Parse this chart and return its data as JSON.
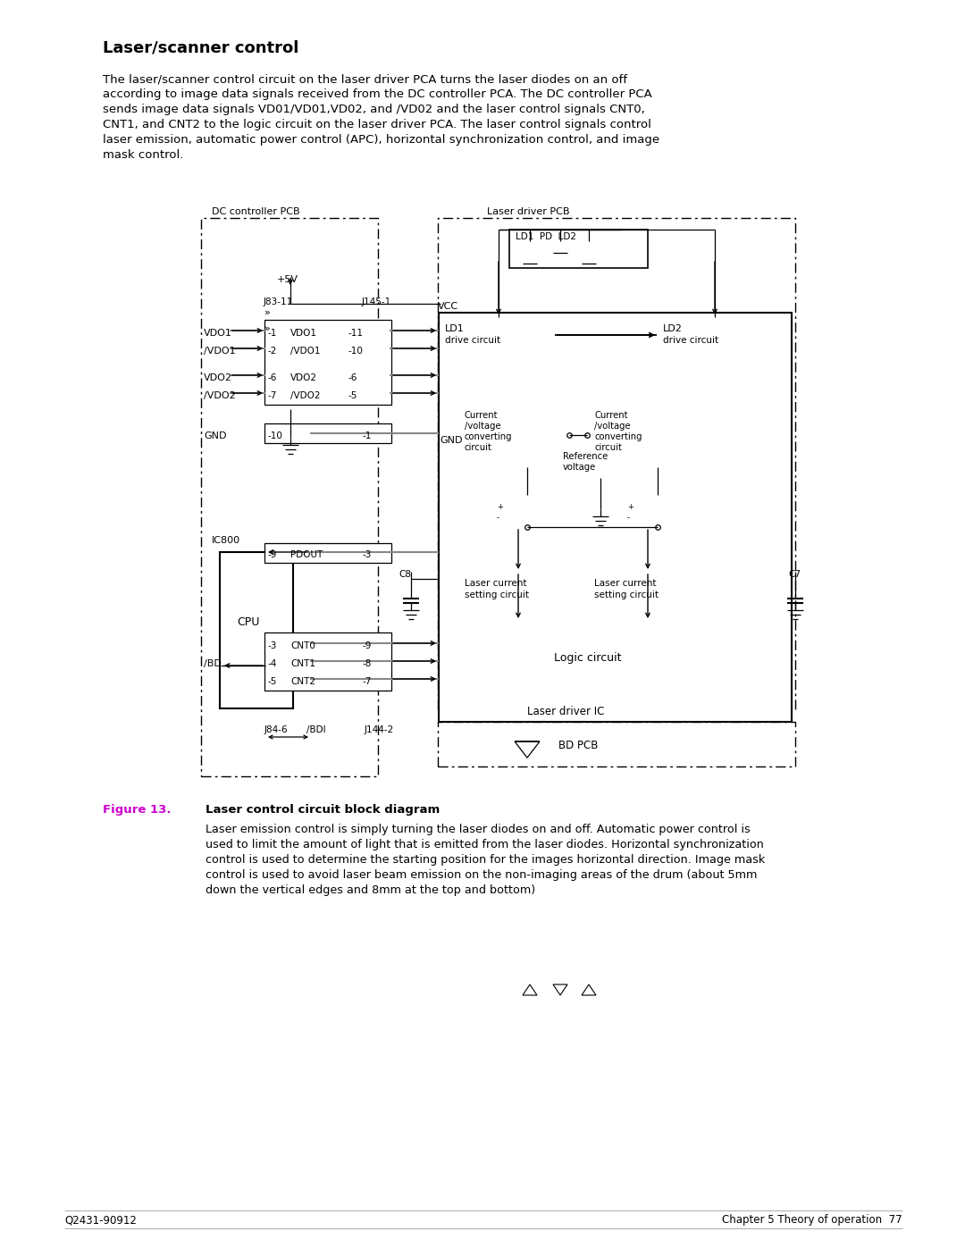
{
  "title": "Laser/scanner control",
  "intro_text_lines": [
    "The laser/scanner control circuit on the laser driver PCA turns the laser diodes on an off",
    "according to image data signals received from the DC controller PCA. The DC controller PCA",
    "sends image data signals VD01/VD01,VD02, and /VD02 and the laser control signals CNT0,",
    "CNT1, and CNT2 to the logic circuit on the laser driver PCA. The laser control signals control",
    "laser emission, automatic power control (APC), horizontal synchronization control, and image",
    "mask control."
  ],
  "figure_label": "Figure 13.",
  "figure_title": "Laser control circuit block diagram",
  "caption_text_lines": [
    "Laser emission control is simply turning the laser diodes on and off. Automatic power control is",
    "used to limit the amount of light that is emitted from the laser diodes. Horizontal synchronization",
    "control is used to determine the starting position for the images horizontal direction. Image mask",
    "control is used to avoid laser beam emission on the non-imaging areas of the drum (about 5mm",
    "down the vertical edges and 8mm at the top and bottom)"
  ],
  "footer_left": "Q2431-90912",
  "footer_right": "Chapter 5 Theory of operation  77",
  "bg_color": "#ffffff",
  "text_color": "#000000",
  "figure_label_color": "#cc00cc",
  "line_color": "#000000"
}
